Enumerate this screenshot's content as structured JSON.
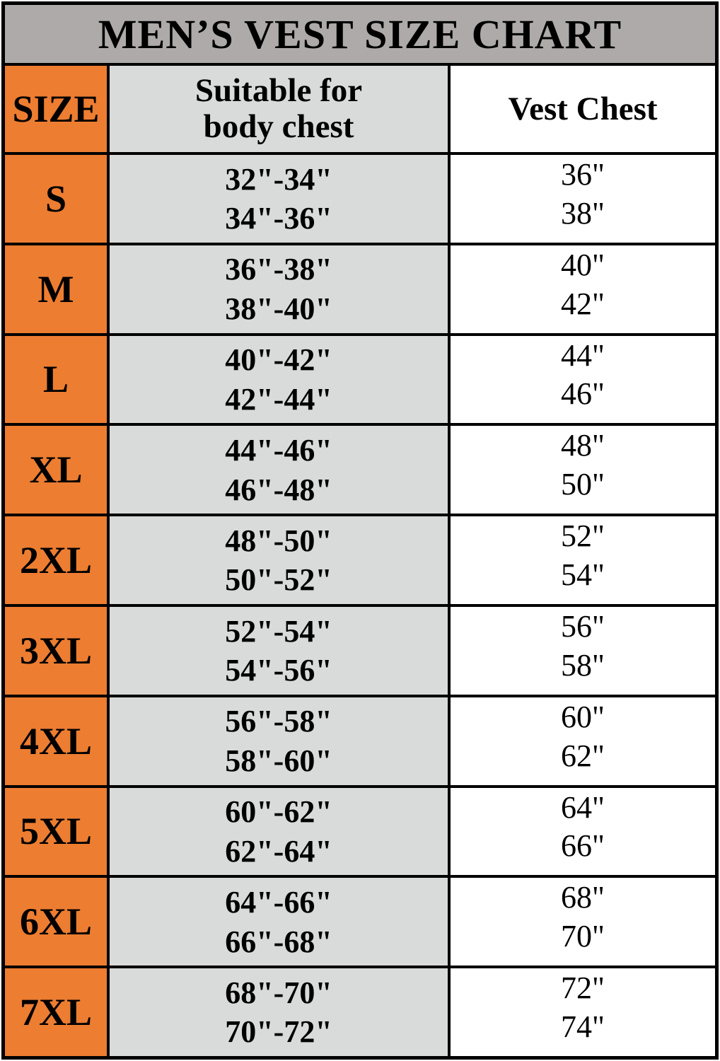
{
  "title": "MEN’S VEST SIZE CHART",
  "columns": {
    "size": "SIZE",
    "body_chest_line1": "Suitable for",
    "body_chest_line2": "body chest",
    "vest_chest": "Vest Chest"
  },
  "rows": [
    {
      "size": "S",
      "body_chest": [
        "32\"-34\"",
        "34\"-36\""
      ],
      "vest_chest": [
        "36\"",
        "38\""
      ]
    },
    {
      "size": "M",
      "body_chest": [
        "36\"-38\"",
        "38\"-40\""
      ],
      "vest_chest": [
        "40\"",
        "42\""
      ]
    },
    {
      "size": "L",
      "body_chest": [
        "40\"-42\"",
        "42\"-44\""
      ],
      "vest_chest": [
        "44\"",
        "46\""
      ]
    },
    {
      "size": "XL",
      "body_chest": [
        "44\"-46\"",
        "46\"-48\""
      ],
      "vest_chest": [
        "48\"",
        "50\""
      ]
    },
    {
      "size": "2XL",
      "body_chest": [
        "48\"-50\"",
        "50\"-52\""
      ],
      "vest_chest": [
        "52\"",
        "54\""
      ]
    },
    {
      "size": "3XL",
      "body_chest": [
        "52\"-54\"",
        "54\"-56\""
      ],
      "vest_chest": [
        "56\"",
        "58\""
      ]
    },
    {
      "size": "4XL",
      "body_chest": [
        "56\"-58\"",
        "58\"-60\""
      ],
      "vest_chest": [
        "60\"",
        "62\""
      ]
    },
    {
      "size": "5XL",
      "body_chest": [
        "60\"-62\"",
        "62\"-64\""
      ],
      "vest_chest": [
        "64\"",
        "66\""
      ]
    },
    {
      "size": "6XL",
      "body_chest": [
        "64\"-66\"",
        "66\"-68\""
      ],
      "vest_chest": [
        "68\"",
        "70\""
      ]
    },
    {
      "size": "7XL",
      "body_chest": [
        "68\"-70\"",
        "70\"-72\""
      ],
      "vest_chest": [
        "72\"",
        "74\""
      ]
    }
  ],
  "colors": {
    "title_banner": "#aeaaaa",
    "size_column": "#ed7d31",
    "body_chest_column": "#d9dbda",
    "vest_chest_column": "#ffffff",
    "border_and_text": "#000000"
  },
  "chart_data": {
    "type": "table",
    "title": "MEN’S VEST SIZE CHART",
    "columns": [
      "SIZE",
      "Suitable for body chest",
      "Vest Chest"
    ],
    "rows": [
      [
        "S",
        "32\"-34\" / 34\"-36\"",
        "36\" / 38\""
      ],
      [
        "M",
        "36\"-38\" / 38\"-40\"",
        "40\" / 42\""
      ],
      [
        "L",
        "40\"-42\" / 42\"-44\"",
        "44\" / 46\""
      ],
      [
        "XL",
        "44\"-46\" / 46\"-48\"",
        "48\" / 50\""
      ],
      [
        "2XL",
        "48\"-50\" / 50\"-52\"",
        "52\" / 54\""
      ],
      [
        "3XL",
        "52\"-54\" / 54\"-56\"",
        "56\" / 58\""
      ],
      [
        "4XL",
        "56\"-58\" / 58\"-60\"",
        "60\" / 62\""
      ],
      [
        "5XL",
        "60\"-62\" / 62\"-64\"",
        "64\" / 66\""
      ],
      [
        "6XL",
        "64\"-66\" / 66\"-68\"",
        "68\" / 70\""
      ],
      [
        "7XL",
        "68\"-70\" / 70\"-72\"",
        "72\" / 74\""
      ]
    ]
  }
}
